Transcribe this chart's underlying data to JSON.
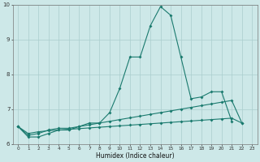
{
  "x": [
    0,
    1,
    2,
    3,
    4,
    5,
    6,
    7,
    8,
    9,
    10,
    11,
    12,
    13,
    14,
    15,
    16,
    17,
    18,
    19,
    20,
    21,
    22,
    23
  ],
  "line1": [
    6.5,
    6.2,
    6.2,
    6.3,
    6.4,
    6.4,
    6.5,
    6.6,
    6.6,
    6.9,
    7.6,
    8.5,
    8.5,
    9.4,
    9.95,
    9.7,
    8.5,
    7.3,
    7.35,
    7.5,
    7.5,
    6.65,
    null,
    null
  ],
  "line2": [
    6.5,
    6.25,
    6.3,
    6.4,
    6.45,
    6.45,
    6.5,
    6.55,
    6.6,
    6.65,
    6.7,
    6.75,
    6.8,
    6.85,
    6.9,
    6.95,
    7.0,
    7.05,
    7.1,
    7.15,
    7.2,
    7.25,
    6.6,
    null
  ],
  "line3": [
    6.5,
    6.3,
    6.35,
    6.38,
    6.4,
    6.42,
    6.44,
    6.46,
    6.48,
    6.5,
    6.52,
    6.54,
    6.56,
    6.58,
    6.6,
    6.62,
    6.64,
    6.66,
    6.68,
    6.7,
    6.72,
    6.74,
    6.6,
    null
  ],
  "ylim": [
    6.0,
    10.0
  ],
  "xlim": [
    -0.5,
    23.5
  ],
  "yticks": [
    6,
    7,
    8,
    9,
    10
  ],
  "xticks": [
    0,
    1,
    2,
    3,
    4,
    5,
    6,
    7,
    8,
    9,
    10,
    11,
    12,
    13,
    14,
    15,
    16,
    17,
    18,
    19,
    20,
    21,
    22,
    23
  ],
  "xlabel": "Humidex (Indice chaleur)",
  "line_color": "#1a7a6e",
  "bg_color": "#cde8e8",
  "grid_color": "#aacece"
}
